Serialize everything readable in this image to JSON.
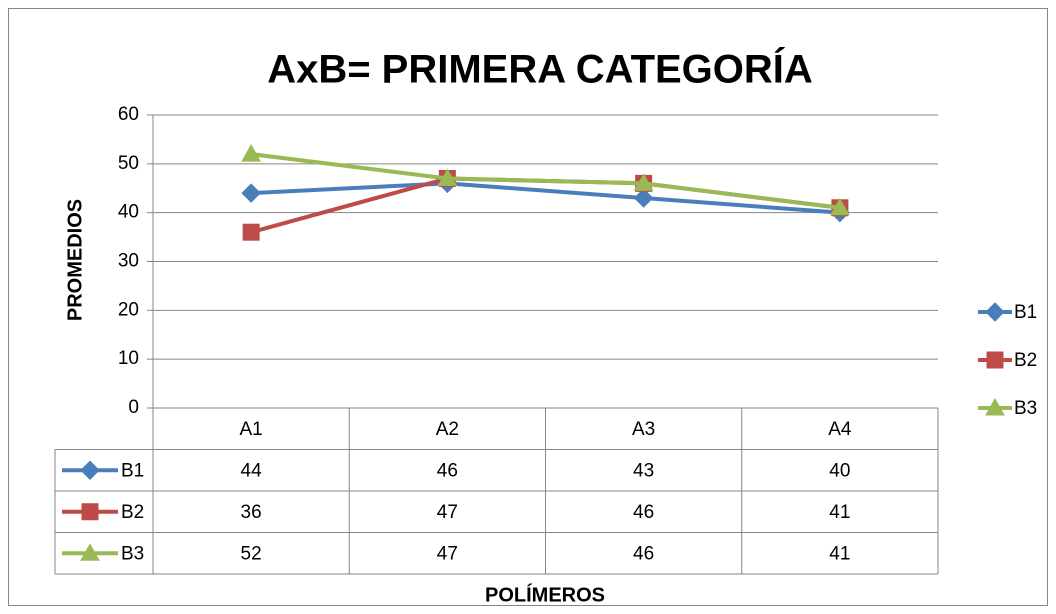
{
  "chart_data": {
    "type": "line",
    "title": "AxB= PRIMERA CATEGORÍA",
    "x_label": "POLÍMEROS",
    "y_label": "PROMEDIOS",
    "categories": [
      "A1",
      "A2",
      "A3",
      "A4"
    ],
    "series": [
      {
        "name": "B1",
        "color": "#4a7ebb",
        "marker": "diamond",
        "values": [
          44,
          46,
          43,
          40
        ]
      },
      {
        "name": "B2",
        "color": "#be4b48",
        "marker": "square",
        "values": [
          36,
          47,
          46,
          41
        ]
      },
      {
        "name": "B3",
        "color": "#98b954",
        "marker": "triangle",
        "values": [
          52,
          47,
          46,
          41
        ]
      }
    ],
    "ylim": [
      0,
      60
    ],
    "yticks": [
      0,
      10,
      20,
      30,
      40,
      50,
      60
    ],
    "grid": true,
    "legend": "right",
    "data_table": true
  }
}
